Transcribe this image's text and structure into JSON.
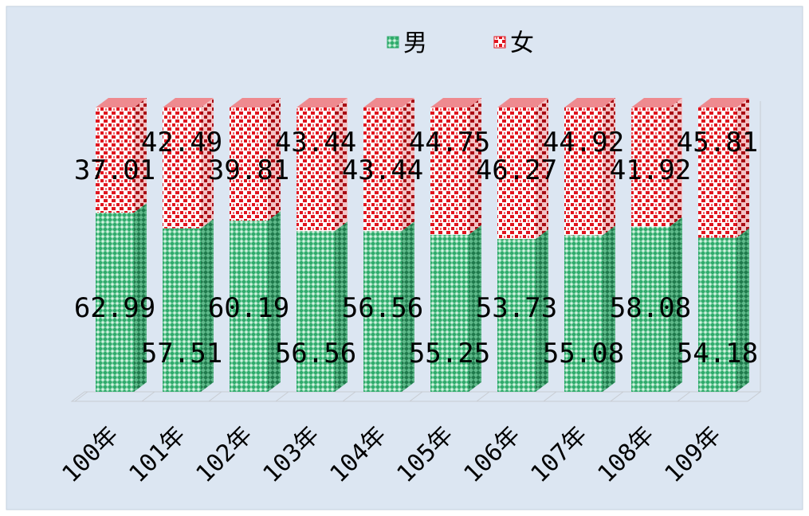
{
  "chart_data": {
    "type": "bar",
    "stacked": true,
    "percent_stacked": true,
    "categories": [
      "100年",
      "101年",
      "102年",
      "103年",
      "104年",
      "105年",
      "106年",
      "107年",
      "108年",
      "109年"
    ],
    "series": [
      {
        "name": "男",
        "color": "#2eaa6b",
        "values": [
          62.99,
          57.51,
          60.19,
          56.56,
          56.56,
          55.25,
          53.73,
          55.08,
          58.08,
          54.18
        ]
      },
      {
        "name": "女",
        "color": "#e0141e",
        "values": [
          37.01,
          42.49,
          39.81,
          43.44,
          43.44,
          44.75,
          46.27,
          44.92,
          41.92,
          45.81
        ]
      }
    ],
    "data_labels": {
      "男": [
        "62.99",
        "57.51",
        "60.19",
        "56.56",
        "56.56",
        "55.25",
        "53.73",
        "55.08",
        "58.08",
        "54.18"
      ],
      "女": [
        "37.01",
        "42.49",
        "39.81",
        "43.44",
        "43.44",
        "44.75",
        "46.27",
        "44.92",
        "41.92",
        "45.81"
      ]
    },
    "ylim": [
      0,
      100
    ],
    "legend_position": "top",
    "grid": false,
    "background": "#dce6f2",
    "title": "",
    "xlabel": "",
    "ylabel": ""
  }
}
